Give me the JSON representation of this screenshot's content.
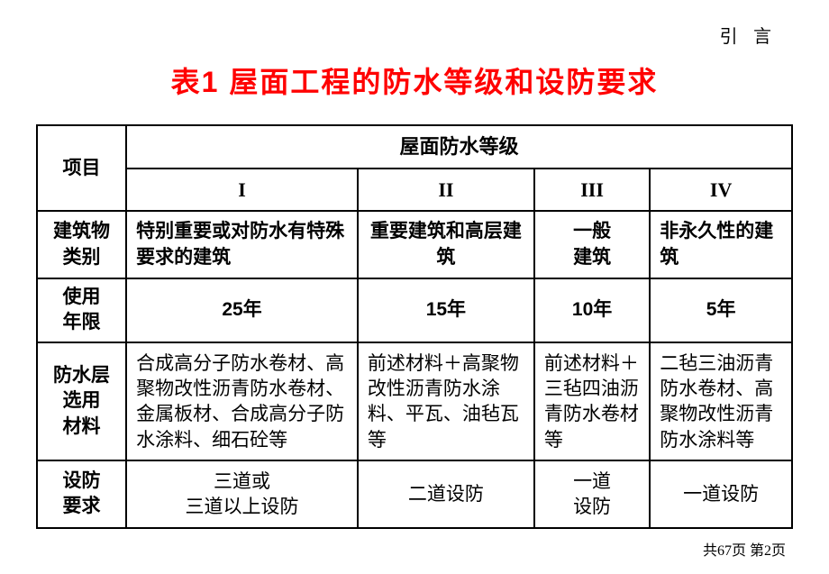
{
  "header_label": "引 言",
  "title": "表1  屋面工程的防水等级和设防要求",
  "table": {
    "corner_label": "项目",
    "spanning_header": "屋面防水等级",
    "grade_headers": [
      "I",
      "II",
      "III",
      "IV"
    ],
    "rows": [
      {
        "label": "建筑物类别",
        "cells": [
          {
            "text": "特别重要或对防水有特殊要求的建筑",
            "align": "left",
            "bold": true
          },
          {
            "text": "重要建筑和高层建筑",
            "align": "center",
            "bold": true
          },
          {
            "text": "一般建筑",
            "align": "center",
            "bold": true
          },
          {
            "text": "非永久性的建筑",
            "align": "left",
            "bold": true
          }
        ]
      },
      {
        "label": "使用年限",
        "cells": [
          {
            "text": "25年",
            "align": "center",
            "bold": true
          },
          {
            "text": "15年",
            "align": "center",
            "bold": true
          },
          {
            "text": "10年",
            "align": "center",
            "bold": true
          },
          {
            "text": "5年",
            "align": "center",
            "bold": true
          }
        ]
      },
      {
        "label": "防水层选用材料",
        "cells": [
          {
            "text": "合成高分子防水卷材、高聚物改性沥青防水卷材、金属板材、合成高分子防水涂料、细石砼等",
            "align": "left",
            "bold": false
          },
          {
            "text": "前述材料＋高聚物改性沥青防水涂料、平瓦、油毡瓦等",
            "align": "left",
            "bold": false
          },
          {
            "text": "前述材料＋三毡四油沥青防水卷材等",
            "align": "left",
            "bold": false
          },
          {
            "text": "二毡三油沥青防水卷材、高聚物改性沥青防水涂料等",
            "align": "left",
            "bold": false
          }
        ]
      },
      {
        "label": "设防要求",
        "cells": [
          {
            "text": "三道或<br>三道以上设防",
            "align": "center",
            "bold": false
          },
          {
            "text": "二道设防",
            "align": "center",
            "bold": false
          },
          {
            "text": "一道设防",
            "align": "center",
            "bold": false
          },
          {
            "text": "一道设防",
            "align": "center",
            "bold": false
          }
        ]
      }
    ]
  },
  "footer": "共67页  第2页",
  "colors": {
    "title": "#ff0000",
    "text": "#000000",
    "border": "#000000",
    "background": "#ffffff"
  }
}
